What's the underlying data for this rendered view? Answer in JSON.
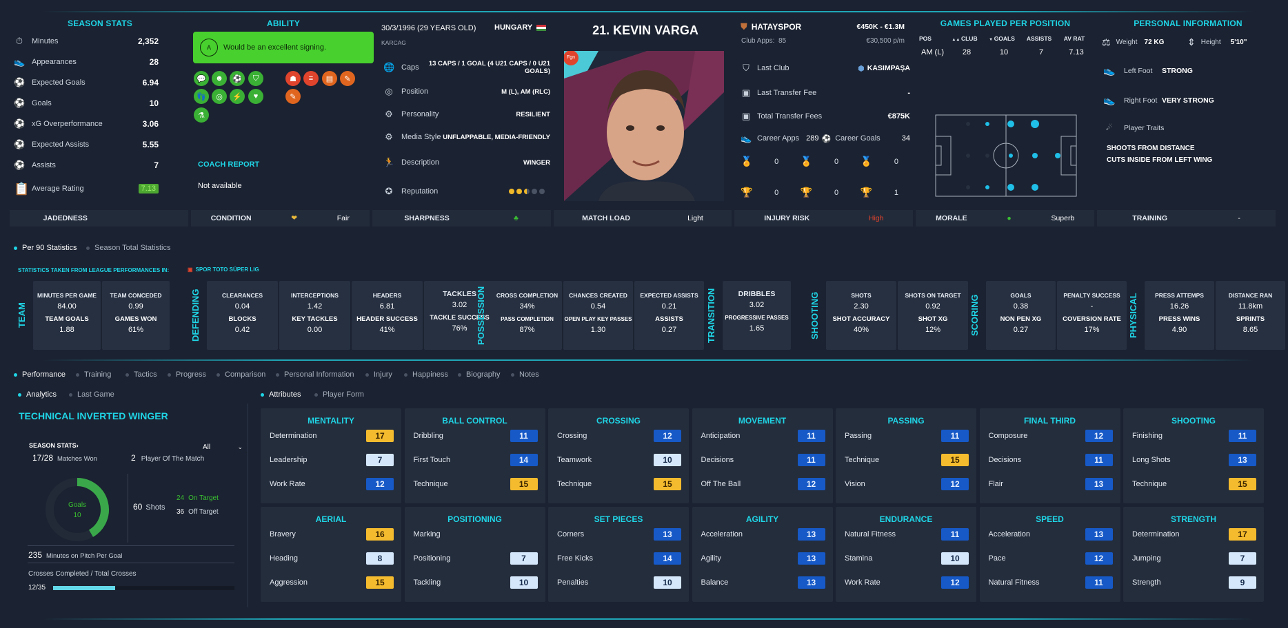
{
  "season_stats": {
    "title": "SEASON STATS",
    "rows": [
      {
        "icon": "stopwatch-icon",
        "glyph": "⏱",
        "label": "Minutes",
        "value": "2,352"
      },
      {
        "icon": "boot-icon",
        "glyph": "👟",
        "label": "Appearances",
        "value": "28"
      },
      {
        "icon": "goal-net-icon",
        "glyph": "⚽",
        "label": "Expected Goals",
        "value": "6.94"
      },
      {
        "icon": "ball-icon",
        "glyph": "⚽",
        "label": "Goals",
        "value": "10"
      },
      {
        "icon": "goal-net-icon",
        "glyph": "⚽",
        "label": "xG Overperformance",
        "value": "3.06"
      },
      {
        "icon": "goal-net-icon",
        "glyph": "⚽",
        "label": "Expected Assists",
        "value": "5.55"
      },
      {
        "icon": "assist-icon",
        "glyph": "⚽",
        "label": "Assists",
        "value": "7"
      }
    ],
    "avg_rating_label": "Average Rating",
    "avg_rating_value": "7.13"
  },
  "ability": {
    "title": "ABILITY",
    "summary": "Would be an excellent signing.",
    "badge_letter": "A",
    "coach_report_title": "COACH REPORT",
    "coach_report_text": "Not available"
  },
  "bio": {
    "dob": "30/3/1996 (29 YEARS OLD)",
    "nationality": "HUNGARY",
    "birthplace": "KARCAG",
    "rows": [
      {
        "icon": "caps-icon",
        "glyph": "🌐",
        "label": "Caps",
        "value": "13 CAPS / 1 GOAL (4 U21 CAPS / 0 U21 GOALS)"
      },
      {
        "icon": "position-pin-icon",
        "glyph": "◎",
        "label": "Position",
        "value": "M (L), AM (RLC)"
      },
      {
        "icon": "cogs-icon",
        "glyph": "⚙",
        "label": "Personality",
        "value": "RESILIENT"
      },
      {
        "icon": "media-icon",
        "glyph": "⚙",
        "label": "Media Style",
        "value": "UNFLAPPABLE, MEDIA-FRIENDLY"
      },
      {
        "icon": "runner-icon",
        "glyph": "🏃",
        "label": "Description",
        "value": "WINGER"
      },
      {
        "icon": "rosette-icon",
        "glyph": "✪",
        "label": "Reputation",
        "value": ""
      }
    ],
    "reputation_stars": 2.5
  },
  "player": {
    "name": "21. KEVIN VARGA",
    "role_badge": "Fgn"
  },
  "club": {
    "name": "HATAYSPOR",
    "value_range": "€450K - €1.3M",
    "club_apps_label": "Club Apps:",
    "club_apps": "85",
    "wage": "€30,500 p/m",
    "last_club_label": "Last Club",
    "last_club": "KASIMPAŞA",
    "last_fee_label": "Last Transfer Fee",
    "last_fee": "-",
    "total_fees_label": "Total Transfer Fees",
    "total_fees": "€875K",
    "career_apps_label": "Career Apps",
    "career_apps": "289",
    "career_goals_label": "Career Goals",
    "career_goals": "34",
    "medals": [
      "0",
      "0",
      "0"
    ],
    "trophies": [
      "0",
      "0",
      "1"
    ]
  },
  "games_per_position": {
    "title": "GAMES PLAYED PER POSITION",
    "headers": [
      "POS",
      "CLUB",
      "GOALS",
      "ASSISTS",
      "AV RAT"
    ],
    "row": [
      "AM (L)",
      "28",
      "10",
      "7",
      "7.13"
    ]
  },
  "personal": {
    "title": "PERSONAL INFORMATION",
    "weight_label": "Weight",
    "weight": "72 KG",
    "height_label": "Height",
    "height": "5'10\"",
    "left_foot_label": "Left Foot",
    "left_foot": "STRONG",
    "right_foot_label": "Right Foot",
    "right_foot": "VERY STRONG",
    "traits_label": "Player Traits",
    "traits": [
      "SHOOTS FROM DISTANCE",
      "CUTS INSIDE FROM LEFT WING"
    ]
  },
  "status": [
    {
      "k": "JADEDNESS",
      "v": ""
    },
    {
      "k": "CONDITION",
      "v": "Fair"
    },
    {
      "k": "SHARPNESS",
      "v": ""
    },
    {
      "k": "MATCH LOAD",
      "v": "Light"
    },
    {
      "k": "INJURY RISK",
      "v": "High"
    },
    {
      "k": "MORALE",
      "v": "Superb"
    },
    {
      "k": "TRAINING",
      "v": "-"
    }
  ],
  "stats_toggle": [
    "Per 90 Statistics",
    "Season Total Statistics"
  ],
  "stats_source_label": "STATISTICS TAKEN FROM LEAGUE PERFORMANCES IN:",
  "stats_source_league": "SPOR TOTO SÜPER LIG",
  "stat_groups": [
    {
      "label": "TEAM",
      "cols": [
        [
          "MINUTES PER GAME",
          "84.00",
          "TEAM GOALS",
          "1.88"
        ],
        [
          "TEAM CONCEDED",
          "0.99",
          "GAMES WON",
          "61%"
        ]
      ]
    },
    {
      "label": "DEFENDING",
      "cols": [
        [
          "CLEARANCES",
          "0.04",
          "BLOCKS",
          "0.42"
        ],
        [
          "INTERCEPTIONS",
          "1.42",
          "KEY TACKLES",
          "0.00"
        ],
        [
          "HEADERS",
          "6.81",
          "HEADER SUCCESS",
          "41%"
        ],
        [
          "TACKLES",
          "3.02",
          "TACKLE SUCCESS",
          "76%"
        ]
      ]
    },
    {
      "label": "POSSESSION",
      "cols": [
        [
          "CROSS COMPLETION",
          "34%",
          "PASS COMPLETION",
          "87%"
        ],
        [
          "CHANCES CREATED",
          "0.54",
          "OPEN PLAY KEY PASSES",
          "1.30"
        ],
        [
          "EXPECTED ASSISTS",
          "0.21",
          "ASSISTS",
          "0.27"
        ]
      ]
    },
    {
      "label": "TRANSITION",
      "cols": [
        [
          "DRIBBLES",
          "3.02",
          "PROGRESSIVE PASSES",
          "1.65"
        ]
      ]
    },
    {
      "label": "SHOOTING",
      "cols": [
        [
          "SHOTS",
          "2.30",
          "SHOT ACCURACY",
          "40%"
        ],
        [
          "SHOTS ON TARGET",
          "0.92",
          "SHOT XG",
          "12%"
        ]
      ]
    },
    {
      "label": "SCORING",
      "cols": [
        [
          "GOALS",
          "0.38",
          "NON PEN XG",
          "0.27"
        ],
        [
          "PENALTY SUCCESS",
          "-",
          "COVERSION RATE",
          "17%"
        ]
      ]
    },
    {
      "label": "PHYSICAL",
      "cols": [
        [
          "PRESS ATTEMPS",
          "16.26",
          "PRESS WINS",
          "4.90"
        ],
        [
          "DISTANCE RAN",
          "11.8km",
          "SPRINTS",
          "8.65"
        ]
      ]
    }
  ],
  "main_tabs": [
    "Performance",
    "Training",
    "Tactics",
    "Progress",
    "Comparison",
    "Personal Information",
    "Injury",
    "Happiness",
    "Biography",
    "Notes"
  ],
  "sub_tabs_left": [
    "Analytics",
    "Last Game"
  ],
  "sub_tabs_right": [
    "Attributes",
    "Player Form"
  ],
  "analytics": {
    "role_title": "TECHNICAL  INVERTED WINGER",
    "season_stats_label": "SEASON STATS",
    "filter": "All",
    "matches_won": "17/28",
    "matches_won_label": "Matches Won",
    "potm": "2",
    "potm_label": "Player Of The Match",
    "goals_label": "Goals",
    "goals": "10",
    "shots": "60",
    "shots_label": "Shots",
    "on_target": "24",
    "on_target_label": "On Target",
    "off_target": "36",
    "off_target_label": "Off Target",
    "mins_per_goal": "235",
    "mins_per_goal_label": "Minutes on Pitch Per Goal",
    "crosses_label": "Crosses Completed / Total Crosses",
    "crosses": "12/35",
    "crosses_fraction": 0.343
  },
  "attributes": [
    {
      "title": "MENTALITY",
      "rows": [
        [
          "Determination",
          "17",
          "gold"
        ],
        [
          "Leadership",
          "7",
          "light"
        ],
        [
          "Work Rate",
          "12",
          "blue"
        ]
      ]
    },
    {
      "title": "BALL CONTROL",
      "rows": [
        [
          "Dribbling",
          "11",
          "blue"
        ],
        [
          "First Touch",
          "14",
          "blue"
        ],
        [
          "Technique",
          "15",
          "gold"
        ]
      ]
    },
    {
      "title": "CROSSING",
      "rows": [
        [
          "Crossing",
          "12",
          "blue"
        ],
        [
          "Teamwork",
          "10",
          "light"
        ],
        [
          "Technique",
          "15",
          "gold"
        ]
      ]
    },
    {
      "title": "MOVEMENT",
      "rows": [
        [
          "Anticipation",
          "11",
          "blue"
        ],
        [
          "Decisions",
          "11",
          "blue"
        ],
        [
          "Off The Ball",
          "12",
          "blue"
        ]
      ]
    },
    {
      "title": "PASSING",
      "rows": [
        [
          "Passing",
          "11",
          "blue"
        ],
        [
          "Technique",
          "15",
          "gold"
        ],
        [
          "Vision",
          "12",
          "blue"
        ]
      ]
    },
    {
      "title": "FINAL THIRD",
      "rows": [
        [
          "Composure",
          "12",
          "blue"
        ],
        [
          "Decisions",
          "11",
          "blue"
        ],
        [
          "Flair",
          "13",
          "blue"
        ]
      ]
    },
    {
      "title": "SHOOTING",
      "rows": [
        [
          "Finishing",
          "11",
          "blue"
        ],
        [
          "Long Shots",
          "13",
          "blue"
        ],
        [
          "Technique",
          "15",
          "gold"
        ]
      ]
    },
    {
      "title": "AERIAL",
      "rows": [
        [
          "Bravery",
          "16",
          "gold"
        ],
        [
          "Heading",
          "8",
          "light"
        ],
        [
          "Aggression",
          "15",
          "gold"
        ]
      ]
    },
    {
      "title": "POSITIONING",
      "rows": [
        [
          "Marking",
          "",
          ""
        ],
        [
          "Positioning",
          "7",
          "light"
        ],
        [
          "Tackling",
          "10",
          "light"
        ]
      ]
    },
    {
      "title": "SET PIECES",
      "rows": [
        [
          "Corners",
          "13",
          "blue"
        ],
        [
          "Free Kicks",
          "14",
          "blue"
        ],
        [
          "Penalties",
          "10",
          "light"
        ]
      ]
    },
    {
      "title": "AGILITY",
      "rows": [
        [
          "Acceleration",
          "13",
          "blue"
        ],
        [
          "Agility",
          "13",
          "blue"
        ],
        [
          "Balance",
          "13",
          "blue"
        ]
      ]
    },
    {
      "title": "ENDURANCE",
      "rows": [
        [
          "Natural Fitness",
          "11",
          "blue"
        ],
        [
          "Stamina",
          "10",
          "light"
        ],
        [
          "Work Rate",
          "12",
          "blue"
        ]
      ]
    },
    {
      "title": "SPEED",
      "rows": [
        [
          "Acceleration",
          "13",
          "blue"
        ],
        [
          "Pace",
          "12",
          "blue"
        ],
        [
          "Natural Fitness",
          "11",
          "blue"
        ]
      ]
    },
    {
      "title": "STRENGTH",
      "rows": [
        [
          "Determination",
          "17",
          "gold"
        ],
        [
          "Jumping",
          "7",
          "light"
        ],
        [
          "Strength",
          "9",
          "light"
        ]
      ]
    }
  ]
}
